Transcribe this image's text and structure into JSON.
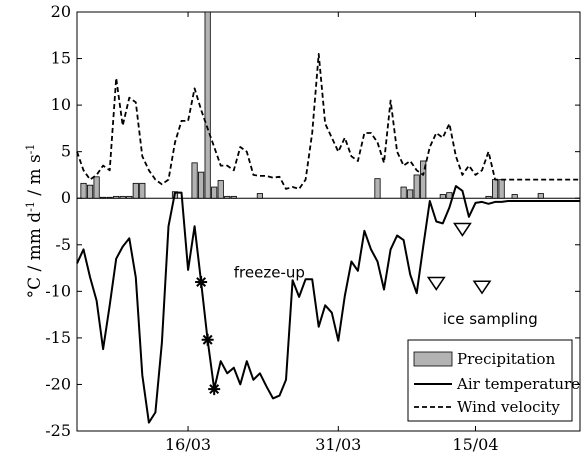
{
  "chart_data": {
    "type": "line",
    "ylabel_parts": [
      "°C / mm d",
      "-1",
      " / m s",
      "-1"
    ],
    "ylim": [
      -25,
      20
    ],
    "yticks": [
      -25,
      -20,
      -15,
      -10,
      -5,
      0,
      5,
      10,
      15,
      20
    ],
    "xlim": [
      0,
      77
    ],
    "xticks": [
      {
        "pos": 17,
        "label": "16/03"
      },
      {
        "pos": 40,
        "label": "31/03"
      },
      {
        "pos": 61,
        "label": "15/04"
      }
    ],
    "grid": false,
    "legend_position": "bottom-right",
    "legend": [
      {
        "key": "precip",
        "label": "Precipitation"
      },
      {
        "key": "air",
        "label": "Air temperature"
      },
      {
        "key": "wind",
        "label": "Wind velocity"
      }
    ],
    "series": [
      {
        "key": "precip",
        "kind": "bar",
        "x": [
          1,
          2,
          3,
          4,
          5,
          6,
          7,
          8,
          9,
          10,
          15,
          18,
          19,
          20,
          21,
          22,
          23,
          24,
          28,
          46,
          50,
          51,
          52,
          53,
          56,
          57,
          63,
          64,
          65,
          67,
          71
        ],
        "values": [
          1.6,
          1.4,
          2.3,
          0.1,
          0.1,
          0.2,
          0.2,
          0.2,
          1.6,
          1.6,
          0.7,
          3.8,
          2.8,
          20,
          1.2,
          1.9,
          0.2,
          0.2,
          0.5,
          2.1,
          1.2,
          0.9,
          2.5,
          4.0,
          0.4,
          0.6,
          0.2,
          2.0,
          2.0,
          0.4,
          0.5
        ]
      },
      {
        "key": "air",
        "kind": "line",
        "style": "solid",
        "x": [
          0,
          1,
          2,
          3,
          4,
          5,
          6,
          7,
          8,
          9,
          10,
          11,
          12,
          13,
          14,
          15,
          16,
          17,
          18,
          19,
          20,
          21,
          22,
          23,
          24,
          25,
          26,
          27,
          28,
          29,
          30,
          31,
          32,
          33,
          34,
          35,
          36,
          37,
          38,
          39,
          40,
          41,
          42,
          43,
          44,
          45,
          46,
          47,
          48,
          49,
          50,
          51,
          52,
          53,
          54,
          55,
          56,
          57,
          58,
          59,
          60,
          61,
          62,
          63,
          64,
          65,
          66,
          67,
          68,
          69,
          70,
          71,
          72,
          73,
          74,
          75,
          76,
          77
        ],
        "values": [
          -7,
          -5.5,
          -8.5,
          -11,
          -16.2,
          -11.5,
          -6.5,
          -5.2,
          -4.3,
          -8.5,
          -19,
          -24.1,
          -23,
          -15.5,
          -3,
          0.6,
          0.6,
          -7.7,
          -3,
          -9,
          -15.2,
          -20.5,
          -17.5,
          -18.8,
          -18.2,
          -20,
          -17.5,
          -19.5,
          -18.8,
          -20.2,
          -21.5,
          -21.2,
          -19.5,
          -8.8,
          -10.6,
          -8.7,
          -8.7,
          -13.8,
          -11.5,
          -12.3,
          -15.3,
          -10.5,
          -6.8,
          -7.8,
          -3.5,
          -5.5,
          -6.8,
          -9.8,
          -5.5,
          -4,
          -4.5,
          -8.2,
          -10.2,
          -5.2,
          -0.3,
          -2.5,
          -2.7,
          -1,
          1.3,
          0.8,
          -2,
          -0.5,
          -0.4,
          -0.6,
          -0.4,
          -0.4,
          -0.3,
          -0.3,
          -0.3,
          -0.3,
          -0.3,
          -0.3,
          -0.3,
          -0.3,
          -0.3,
          -0.3,
          -0.3,
          -0.3
        ]
      },
      {
        "key": "wind",
        "kind": "line",
        "style": "dashed",
        "x": [
          0,
          1,
          2,
          3,
          4,
          5,
          6,
          7,
          8,
          9,
          10,
          11,
          12,
          13,
          14,
          15,
          16,
          17,
          18,
          19,
          20,
          21,
          22,
          23,
          24,
          25,
          26,
          27,
          28,
          29,
          30,
          31,
          32,
          33,
          34,
          35,
          36,
          37,
          38,
          39,
          40,
          41,
          42,
          43,
          44,
          45,
          46,
          47,
          48,
          49,
          50,
          51,
          52,
          53,
          54,
          55,
          56,
          57,
          58,
          59,
          60,
          61,
          62,
          63,
          64,
          65,
          66,
          67,
          68,
          69,
          70,
          71,
          72,
          73,
          74,
          75,
          76,
          77
        ],
        "values": [
          5,
          3,
          2,
          2.5,
          3.5,
          3,
          12.9,
          7.8,
          10.8,
          10.3,
          4.5,
          3,
          2,
          1.5,
          2,
          6,
          8.3,
          8.3,
          11.8,
          9.5,
          7.5,
          5.5,
          3.5,
          3.5,
          3,
          5.5,
          5,
          2.5,
          2.4,
          2.4,
          2.2,
          2.3,
          1,
          1.2,
          1,
          2,
          7,
          15.5,
          8,
          6.5,
          5,
          6.5,
          4.5,
          4,
          7,
          7,
          6,
          3.8,
          10.5,
          5,
          3.5,
          4,
          3,
          2.5,
          5.5,
          7,
          6.5,
          8,
          4.5,
          2.5,
          3.5,
          2.5,
          3,
          5,
          2,
          2,
          2,
          2,
          2,
          2,
          2,
          2,
          2,
          2,
          2,
          2,
          2,
          2
        ]
      }
    ],
    "annotations": [
      {
        "text": "freeze-up",
        "marker": "star",
        "points": [
          {
            "x": 19,
            "y": -9
          },
          {
            "x": 20,
            "y": -15.2
          },
          {
            "x": 21,
            "y": -20.5
          }
        ],
        "label_at": {
          "x": 24,
          "y": -8.5
        }
      },
      {
        "text": "ice sampling",
        "marker": "triangle-down",
        "points": [
          {
            "x": 55,
            "y": -9.8
          },
          {
            "x": 59,
            "y": -4
          },
          {
            "x": 62,
            "y": -10.2
          }
        ],
        "label_at": {
          "x": 56,
          "y": -13.5
        }
      }
    ]
  }
}
